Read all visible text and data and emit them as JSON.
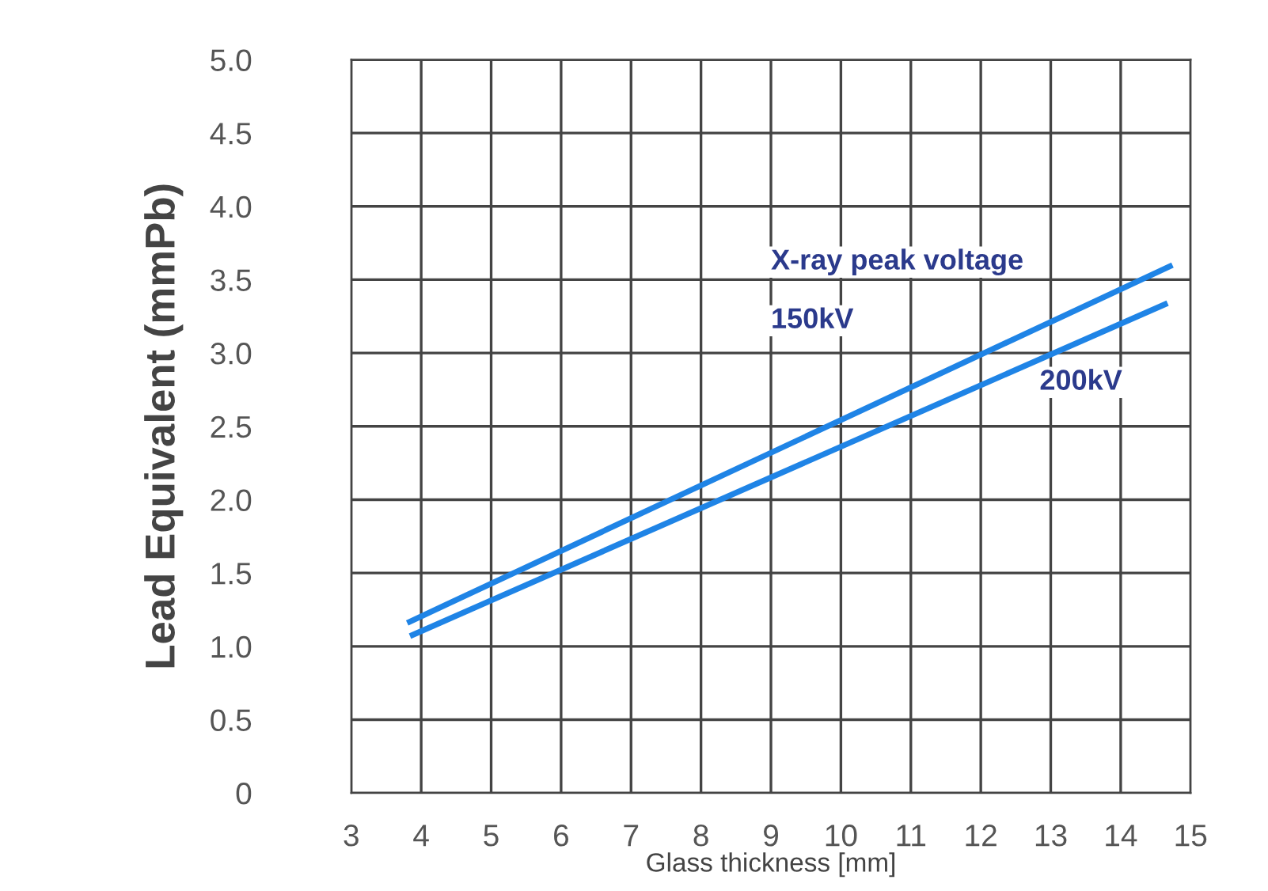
{
  "chart_data": {
    "type": "line",
    "ylabel": "Lead Equivalent (mmPb)",
    "xlabel": "Glass thickness [mm]",
    "legend_title": "X-ray peak voltage",
    "series": [
      {
        "name": "150kV",
        "color": "#1f84e6",
        "x": [
          3.8,
          14.74
        ],
        "values": [
          1.16,
          3.6
        ]
      },
      {
        "name": "200kV",
        "color": "#1f84e6",
        "x": [
          3.84,
          14.67
        ],
        "values": [
          1.07,
          3.34
        ]
      }
    ],
    "xlim": [
      3,
      15
    ],
    "xticks": [
      3,
      4,
      5,
      6,
      7,
      8,
      9,
      10,
      11,
      12,
      13,
      14,
      15
    ],
    "ylim": [
      0,
      5
    ],
    "yticks": [
      {
        "value": 0,
        "label": "0"
      },
      {
        "value": 0.5,
        "label": "0.5"
      },
      {
        "value": 1,
        "label": "1.0"
      },
      {
        "value": 1.5,
        "label": "1.5"
      },
      {
        "value": 2,
        "label": "2.0"
      },
      {
        "value": 2.5,
        "label": "2.5"
      },
      {
        "value": 3,
        "label": "3.0"
      },
      {
        "value": 3.5,
        "label": "3.5"
      },
      {
        "value": 4,
        "label": "4.0"
      },
      {
        "value": 4.5,
        "label": "4.5"
      },
      {
        "value": 5,
        "label": "5.0"
      }
    ],
    "grid": true,
    "legend": false,
    "marker": "none",
    "line_style": "solid"
  }
}
